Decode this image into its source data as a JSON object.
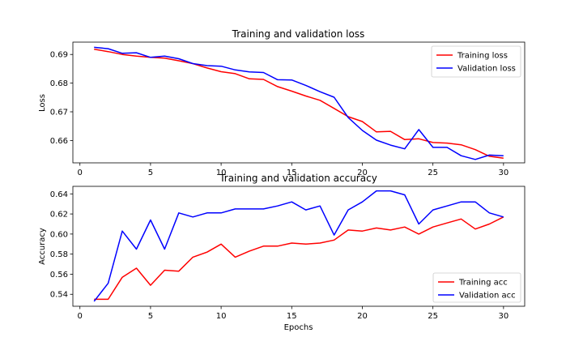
{
  "chart_data": [
    {
      "type": "line",
      "title": "Training and validation loss",
      "xlabel": "",
      "ylabel": "Loss",
      "xlim": [
        -0.5,
        31.5
      ],
      "ylim": [
        0.6522,
        0.6943
      ],
      "xticks": [
        0,
        5,
        10,
        15,
        20,
        25,
        30
      ],
      "yticks": [
        0.66,
        0.67,
        0.68,
        0.69
      ],
      "ytick_labels": [
        "0.66",
        "0.67",
        "0.68",
        "0.69"
      ],
      "grid": false,
      "legend_position": "upper right",
      "x": [
        1,
        2,
        3,
        4,
        5,
        6,
        7,
        8,
        9,
        10,
        11,
        12,
        13,
        14,
        15,
        16,
        17,
        18,
        19,
        20,
        21,
        22,
        23,
        24,
        25,
        26,
        27,
        28,
        29,
        30
      ],
      "series": [
        {
          "name": "Training loss",
          "color": "#ff0000",
          "values": [
            0.6918,
            0.691,
            0.69,
            0.6894,
            0.689,
            0.6887,
            0.6878,
            0.6868,
            0.6853,
            0.684,
            0.6833,
            0.6815,
            0.6813,
            0.6788,
            0.6772,
            0.6755,
            0.674,
            0.6712,
            0.6683,
            0.6666,
            0.663,
            0.6632,
            0.6603,
            0.6606,
            0.6593,
            0.6591,
            0.6585,
            0.6568,
            0.6545,
            0.6538
          ]
        },
        {
          "name": "Validation loss",
          "color": "#0000ff",
          "values": [
            0.6925,
            0.692,
            0.6904,
            0.6906,
            0.689,
            0.6894,
            0.6885,
            0.6868,
            0.6861,
            0.6859,
            0.6846,
            0.6839,
            0.6837,
            0.6812,
            0.6811,
            0.6792,
            0.677,
            0.6751,
            0.668,
            0.6635,
            0.6601,
            0.6584,
            0.6571,
            0.6638,
            0.6576,
            0.6576,
            0.6547,
            0.6534,
            0.6549,
            0.6547
          ]
        }
      ]
    },
    {
      "type": "line",
      "title": "Training and validation accuracy",
      "xlabel": "Epochs",
      "ylabel": "Accuracy",
      "xlim": [
        -0.5,
        31.5
      ],
      "ylim": [
        0.5281,
        0.6475
      ],
      "xticks": [
        0,
        5,
        10,
        15,
        20,
        25,
        30
      ],
      "yticks": [
        0.54,
        0.56,
        0.58,
        0.6,
        0.62,
        0.64
      ],
      "ytick_labels": [
        "0.54",
        "0.56",
        "0.58",
        "0.60",
        "0.62",
        "0.64"
      ],
      "grid": false,
      "legend_position": "lower right",
      "x": [
        1,
        2,
        3,
        4,
        5,
        6,
        7,
        8,
        9,
        10,
        11,
        12,
        13,
        14,
        15,
        16,
        17,
        18,
        19,
        20,
        21,
        22,
        23,
        24,
        25,
        26,
        27,
        28,
        29,
        30
      ],
      "series": [
        {
          "name": "Training acc",
          "color": "#ff0000",
          "values": [
            0.535,
            0.535,
            0.557,
            0.566,
            0.549,
            0.564,
            0.563,
            0.577,
            0.582,
            0.59,
            0.577,
            0.583,
            0.588,
            0.588,
            0.591,
            0.59,
            0.591,
            0.594,
            0.604,
            0.603,
            0.606,
            0.604,
            0.607,
            0.6,
            0.607,
            0.611,
            0.615,
            0.605,
            0.61,
            0.617
          ]
        },
        {
          "name": "Validation acc",
          "color": "#0000ff",
          "values": [
            0.533,
            0.551,
            0.603,
            0.585,
            0.614,
            0.585,
            0.621,
            0.617,
            0.621,
            0.621,
            0.625,
            0.625,
            0.625,
            0.628,
            0.632,
            0.624,
            0.628,
            0.599,
            0.624,
            0.632,
            0.643,
            0.643,
            0.639,
            0.61,
            0.624,
            0.628,
            0.632,
            0.632,
            0.621,
            0.617
          ]
        }
      ]
    }
  ]
}
